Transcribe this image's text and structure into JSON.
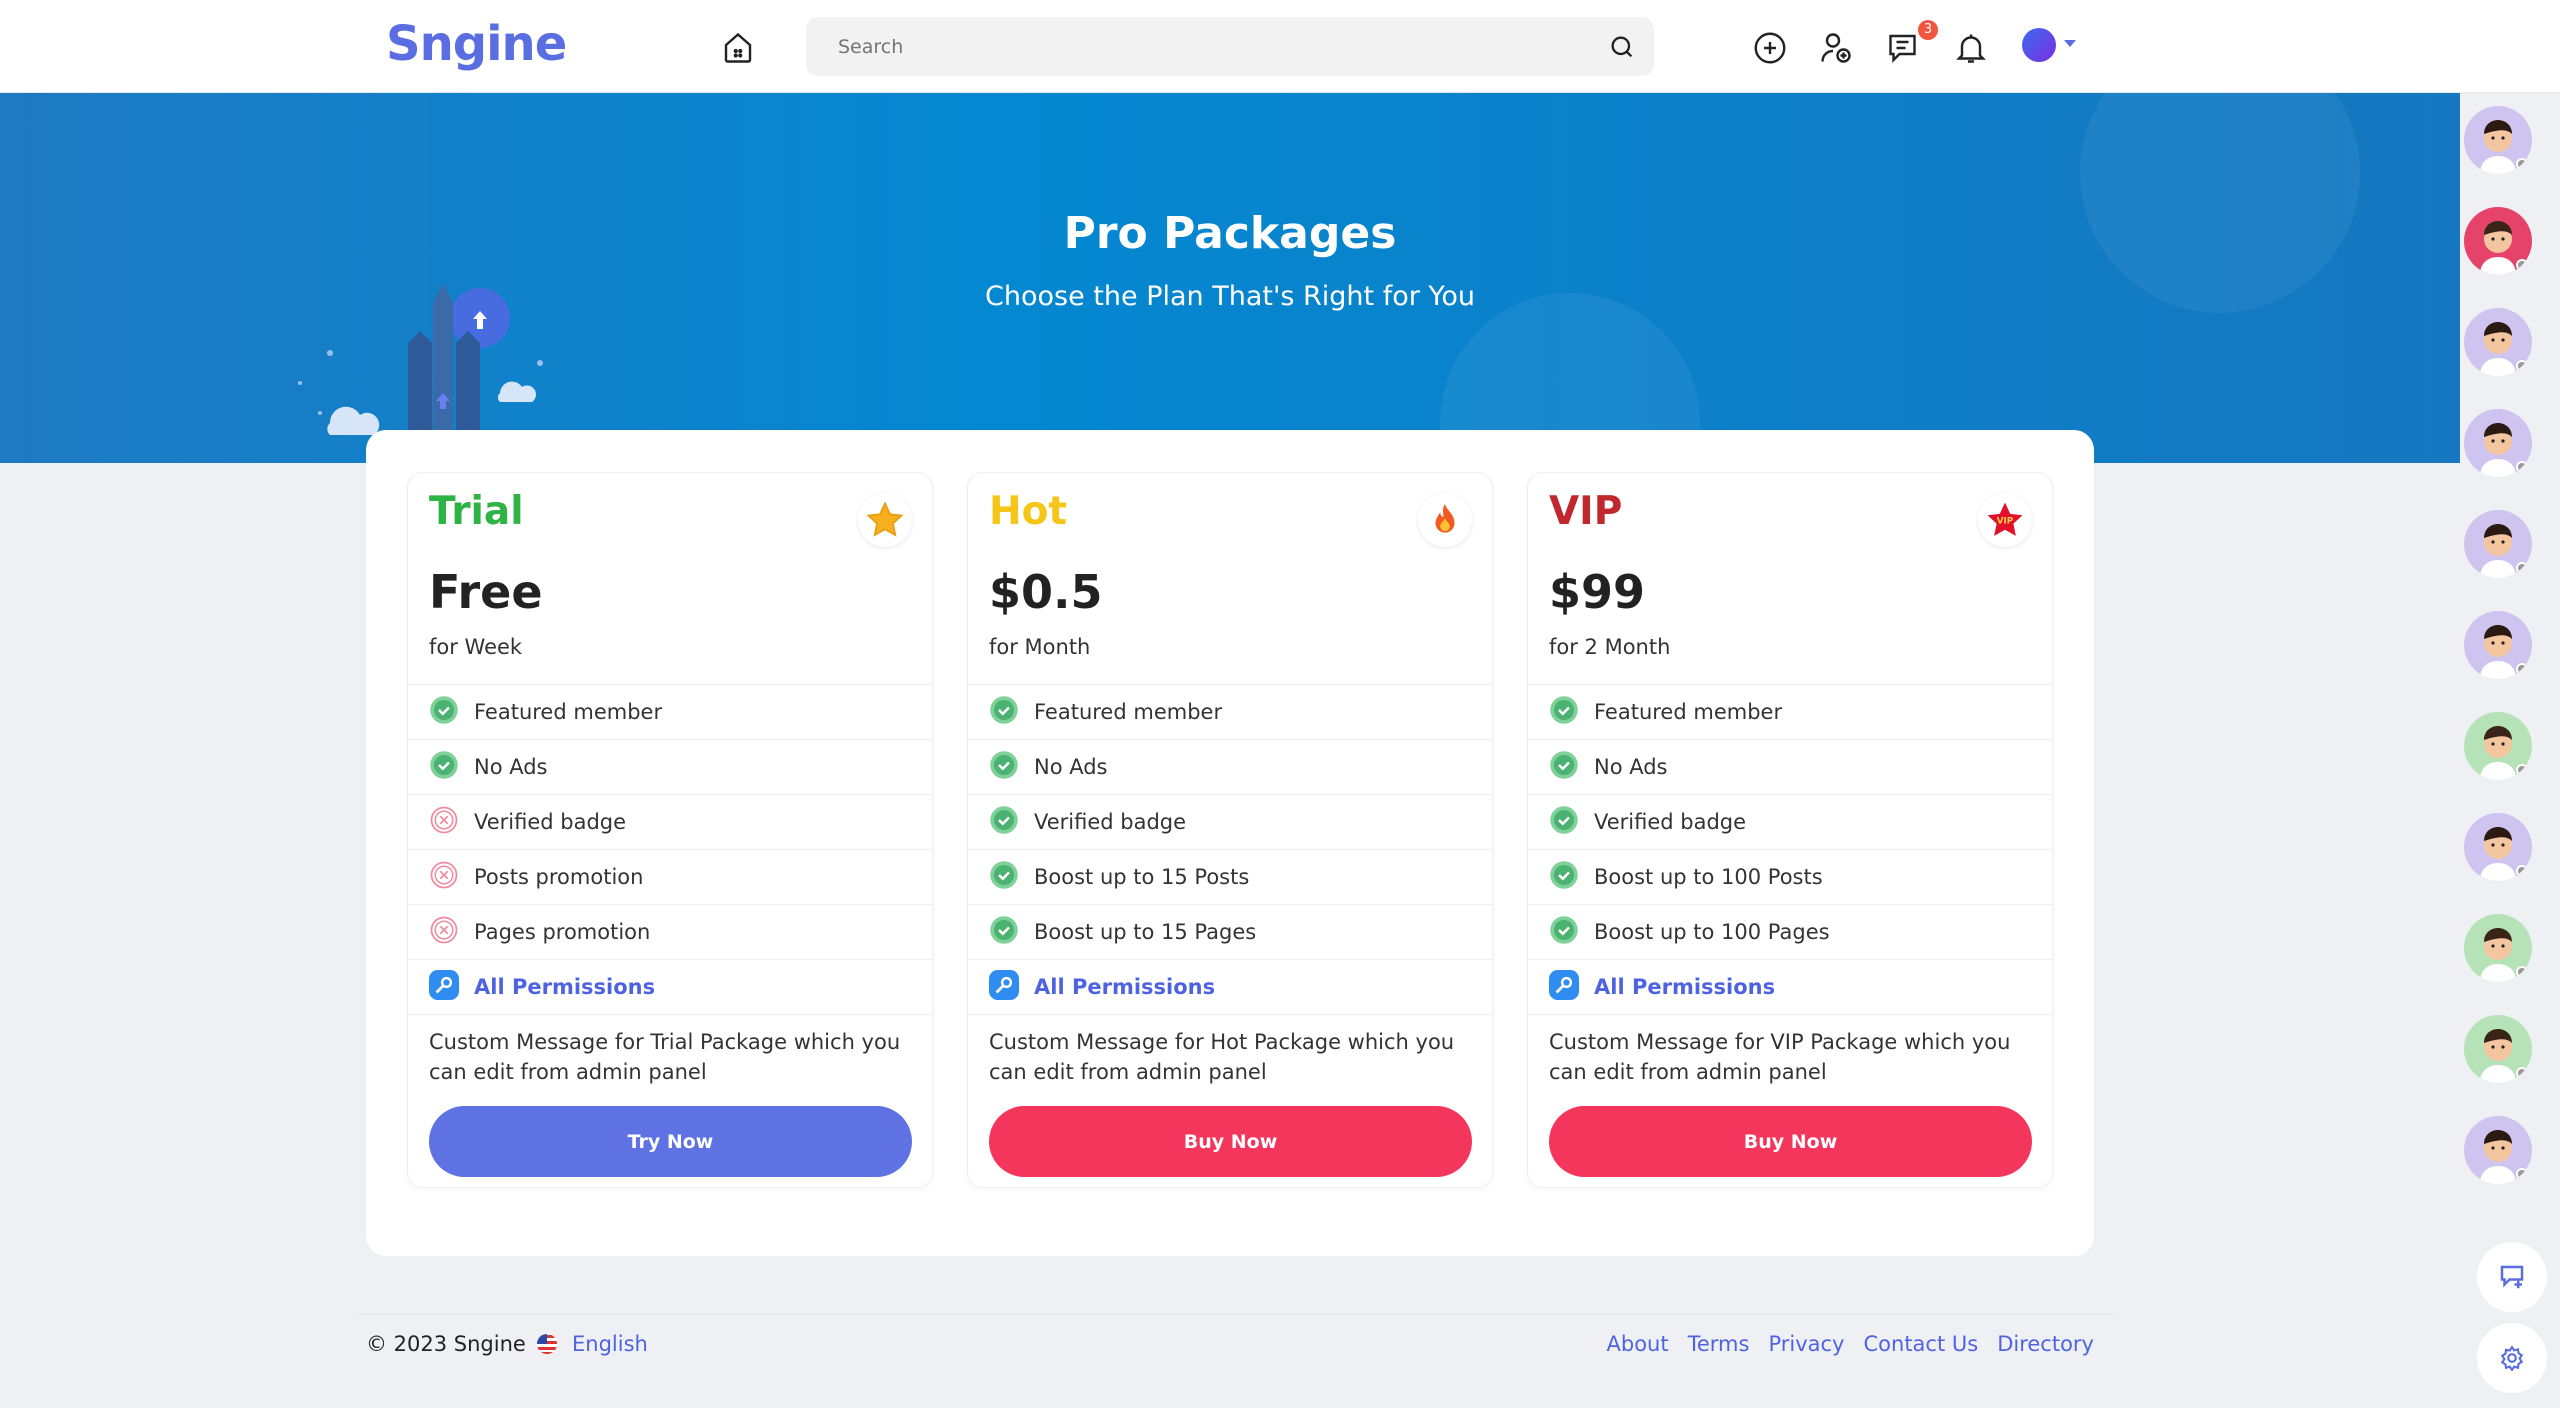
{
  "header": {
    "logo": "Sngine",
    "search_placeholder": "Search",
    "messages_badge": "3"
  },
  "banner": {
    "title": "Pro Packages",
    "subtitle": "Choose the Plan That's Right for You"
  },
  "packages": [
    {
      "name": "Trial",
      "color": "#2fb344",
      "icon": "star-icon",
      "price": "Free",
      "period": "for Week",
      "features": [
        {
          "label": "Featured member",
          "included": true
        },
        {
          "label": "No Ads",
          "included": true
        },
        {
          "label": "Verified badge",
          "included": false
        },
        {
          "label": "Posts promotion",
          "included": false
        },
        {
          "label": "Pages promotion",
          "included": false
        }
      ],
      "permissions": "All Permissions",
      "message": "Custom Message for Trial Package which you can edit from admin panel",
      "button": "Try Now",
      "button_color": "#5e72e4"
    },
    {
      "name": "Hot",
      "color": "#f5c518",
      "icon": "fire-icon",
      "price": "$0.5",
      "period": "for Month",
      "features": [
        {
          "label": "Featured member",
          "included": true
        },
        {
          "label": "No Ads",
          "included": true
        },
        {
          "label": "Verified badge",
          "included": true
        },
        {
          "label": "Boost up to 15 Posts",
          "included": true
        },
        {
          "label": "Boost up to 15 Pages",
          "included": true
        }
      ],
      "permissions": "All Permissions",
      "message": "Custom Message for Hot Package which you can edit from admin panel",
      "button": "Buy Now",
      "button_color": "#f5365c"
    },
    {
      "name": "VIP",
      "color": "#c0282d",
      "icon": "vip-star-icon",
      "price": "$99",
      "period": "for 2 Month",
      "features": [
        {
          "label": "Featured member",
          "included": true
        },
        {
          "label": "No Ads",
          "included": true
        },
        {
          "label": "Verified badge",
          "included": true
        },
        {
          "label": "Boost up to 100 Posts",
          "included": true
        },
        {
          "label": "Boost up to 100 Pages",
          "included": true
        }
      ],
      "permissions": "All Permissions",
      "message": "Custom Message for VIP Package which you can edit from admin panel",
      "button": "Buy Now",
      "button_color": "#f5365c"
    }
  ],
  "online_users": [
    "male",
    "female-dark",
    "male",
    "male",
    "male",
    "male",
    "female",
    "male",
    "female",
    "female",
    "male"
  ],
  "footer": {
    "copyright": "© 2023 Sngine",
    "language": "English",
    "links": [
      "About",
      "Terms",
      "Privacy",
      "Contact Us",
      "Directory"
    ]
  },
  "colors": {
    "brand": "#5b6ee1",
    "banner": "#0488d1"
  }
}
